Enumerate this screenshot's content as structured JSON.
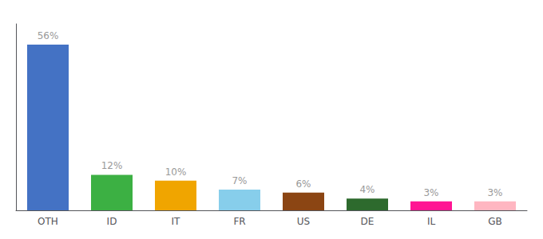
{
  "chart_data": {
    "type": "bar",
    "categories": [
      "OTH",
      "ID",
      "IT",
      "FR",
      "US",
      "DE",
      "IL",
      "GB"
    ],
    "values": [
      56,
      12,
      10,
      7,
      6,
      4,
      3,
      3
    ],
    "value_labels": [
      "56%",
      "12%",
      "10%",
      "7%",
      "6%",
      "4%",
      "3%",
      "3%"
    ],
    "colors": [
      "#4472c4",
      "#3cb043",
      "#f0a500",
      "#87ceeb",
      "#8b4513",
      "#2d6a2d",
      "#ff1493",
      "#ffb6c1"
    ],
    "ylim": [
      0,
      63
    ],
    "grid": false,
    "data_labels": true,
    "tick_labels": "x"
  }
}
